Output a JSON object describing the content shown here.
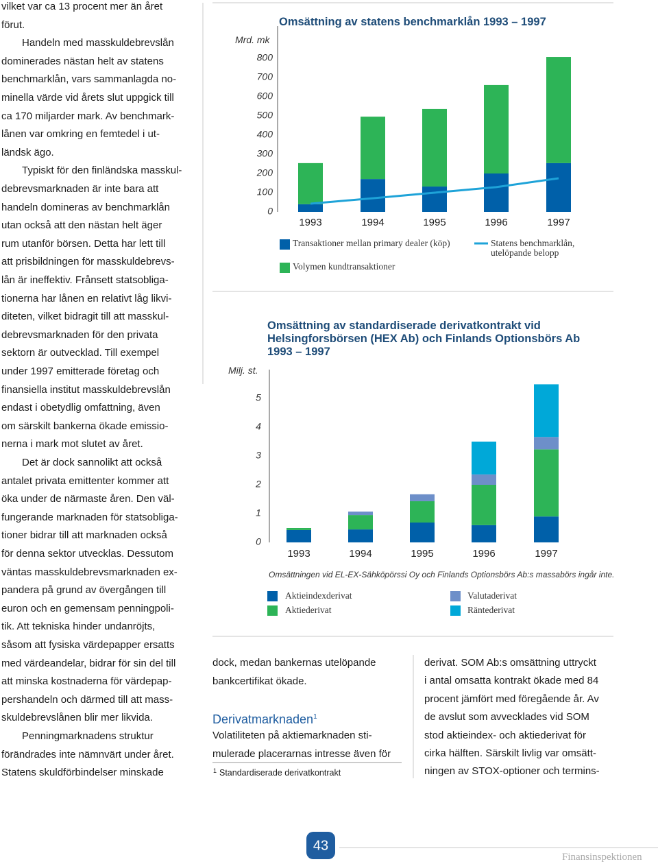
{
  "left_column": {
    "paragraphs": [
      [
        "vilket var ca 13 procent mer än året",
        "förut."
      ],
      [
        "Handeln med masskuldebrevslån",
        "dominerades nästan helt av statens",
        "benchmarklån, vars sammanlagda no-",
        "minella värde vid årets slut uppgick till",
        "ca 170 miljarder mark. Av benchmark-",
        "lånen var omkring en femtedel i ut-",
        "ländsk ägo."
      ],
      [
        "Typiskt för den finländska masskul-",
        "debrevsmarknaden är inte bara att",
        "handeln domineras av benchmarklån",
        "utan också att den nästan helt äger",
        "rum utanför börsen. Detta har lett till",
        "att prisbildningen för masskuldebrevs-",
        "lån är ineffektiv. Frånsett statsobliga-",
        "tionerna har lånen en relativt låg likvi-",
        "diteten, vilket bidragit till att masskul-",
        "debrevsmarknaden för den privata",
        "sektorn är outvecklad. Till exempel",
        "under 1997 emitterade företag och",
        "finansiella institut masskuldebrevslån",
        "endast i obetydlig omfattning, även",
        "om särskilt bankerna ökade emissio-",
        "nerna i mark mot slutet av året."
      ],
      [
        "Det är dock sannolikt att också",
        "antalet privata emittenter kommer att",
        "öka under de närmaste åren. Den väl-",
        "fungerande marknaden för statsobliga-",
        "tioner bidrar till att marknaden också",
        "för denna sektor utvecklas. Dessutom",
        "väntas masskuldebrevsmarknaden ex-",
        "pandera på grund av övergången till",
        "euron och en gemensam penningpoli-",
        "tik. Att tekniska hinder undanröjts,",
        "såsom att fysiska värdepapper ersatts",
        "med värdeandelar, bidrar för sin del till",
        "att minska kostnaderna för värdepap-",
        "pershandeln och därmed till att mass-",
        "skuldebrevslånen blir mer likvida."
      ],
      [
        "Penningmarknadens struktur",
        "förändrades inte nämnvärt under året.",
        "Statens skuldförbindelser minskade"
      ]
    ]
  },
  "chart_data": [
    {
      "type": "bar",
      "stacked": true,
      "title": "Omsättning av statens benchmarklån 1993 – 1997",
      "y_label": "Mrd. mk",
      "categories": [
        "1993",
        "1994",
        "1995",
        "1996",
        "1997"
      ],
      "series": [
        {
          "name": "Transaktioner mellan primary dealer (köp)",
          "color": "#0060a9",
          "values": [
            40,
            171,
            132,
            200,
            254
          ]
        },
        {
          "name": "Volymen kundtransaktioner",
          "color": "#2db457",
          "values": [
            214,
            325,
            404,
            461,
            553
          ]
        },
        {
          "name": "Statens benchmarklån, utelöpande belopp",
          "type": "line",
          "color": "#1ea3d8",
          "values": [
            43,
            71,
            100,
            129,
            175
          ]
        }
      ],
      "ylim": [
        0,
        900
      ],
      "yticks": [
        0,
        100,
        200,
        300,
        400,
        500,
        600,
        700,
        800
      ]
    },
    {
      "type": "bar",
      "stacked": true,
      "title": "Omsättning av standardiserade derivatkontrakt vid Helsingforsbörsen (HEX Ab) och Finlands Optionsbörs Ab 1993 – 1997",
      "y_label": "Milj. st.",
      "note": "Omsättningen vid EL-EX-Sähköpörssi Oy och Finlands Optionsbörs Ab:s massabörs ingår inte.",
      "categories": [
        "1993",
        "1994",
        "1995",
        "1996",
        "1997"
      ],
      "series": [
        {
          "name": "Aktieindexderivat",
          "color": "#0060a9",
          "values": [
            0.43,
            0.45,
            0.69,
            0.6,
            0.9
          ]
        },
        {
          "name": "Aktiederivat",
          "color": "#2db457",
          "values": [
            0.07,
            0.5,
            0.74,
            1.4,
            2.33
          ]
        },
        {
          "name": "Valutaderivat",
          "color": "#6d8fc9",
          "values": [
            0,
            0.12,
            0.24,
            0.36,
            0.43
          ]
        },
        {
          "name": "Räntederivat",
          "color": "#00a8d8",
          "values": [
            0,
            0,
            0,
            1.14,
            1.83
          ]
        }
      ],
      "ylim": [
        0,
        6
      ],
      "yticks": [
        0,
        1,
        2,
        3,
        4,
        5
      ]
    }
  ],
  "middle_column": {
    "lines_before": [
      "dock, medan bankernas utelöpande",
      "bankcertifikat ökade."
    ],
    "heading": "Derivatmarknaden",
    "heading_note": "1",
    "lines_after": [
      "Volatiliteten på aktiemarknaden sti-",
      "mulerade placerarnas intresse även för"
    ],
    "footnote": {
      "marker": "1",
      "text": "Standardiserade derivatkontrakt"
    }
  },
  "right_column": {
    "lines": [
      "derivat. SOM Ab:s omsättning uttryckt",
      "i antal omsatta kontrakt ökade med 84",
      "procent jämfört med föregående år. Av",
      "de avslut som avvecklades vid SOM",
      "stod aktieindex- och aktiederivat för",
      "cirka hälften. Särskilt livlig var omsätt-",
      "ningen av STOX-optioner och termins-"
    ]
  },
  "footer": {
    "page_number": "43",
    "publisher": "Finansinspektionen"
  }
}
